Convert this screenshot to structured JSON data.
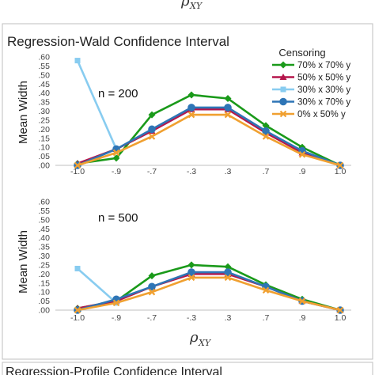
{
  "header_axis": {
    "symbol": "ρ",
    "subscript": "XY"
  },
  "panel_title": "Regression-Wald Confidence Interval",
  "bottom_title": "Regression-Profile Confidence Interval",
  "legend": {
    "title": "Censoring"
  },
  "x_axis": {
    "symbol": "ρ",
    "subscript": "XY"
  },
  "chart_data": [
    {
      "type": "line",
      "title": "Regression-Wald Confidence Interval",
      "annotation": "n = 200",
      "ylabel": "Mean Width",
      "xlabel": "ρXY",
      "categories": [
        "-1.0",
        "-.9",
        "-.7",
        "-.3",
        ".3",
        ".7",
        ".9",
        "1.0"
      ],
      "ylim": [
        0,
        0.6
      ],
      "yticks": [
        ".00",
        ".05",
        ".10",
        ".15",
        ".20",
        ".25",
        ".30",
        ".35",
        ".40",
        ".45",
        ".50",
        ".55",
        ".60"
      ],
      "grid": false,
      "legend_position": "top-right",
      "series": [
        {
          "name": "70% x 70% y",
          "color": "#1a9a1a",
          "marker": "diamond",
          "values": [
            0.01,
            0.04,
            0.28,
            0.39,
            0.37,
            0.22,
            0.1,
            0.0
          ]
        },
        {
          "name": "50% x 50% y",
          "color": "#b5164b",
          "marker": "triangle",
          "values": [
            0.01,
            0.09,
            0.19,
            0.31,
            0.31,
            0.18,
            0.07,
            0.0
          ]
        },
        {
          "name": "30% x 30% y",
          "color": "#88ccf0",
          "marker": "square",
          "values": [
            0.58,
            0.09,
            null,
            null,
            null,
            null,
            null,
            null
          ]
        },
        {
          "name": "30% x 70% y",
          "color": "#2e75b6",
          "marker": "circle",
          "values": [
            0.0,
            0.09,
            0.2,
            0.32,
            0.32,
            0.19,
            0.08,
            0.0
          ]
        },
        {
          "name": "0% x 50% y",
          "color": "#f0a030",
          "marker": "x",
          "values": [
            0.0,
            0.07,
            0.16,
            0.28,
            0.28,
            0.16,
            0.06,
            0.0
          ]
        }
      ]
    },
    {
      "type": "line",
      "annotation": "n = 500",
      "ylabel": "Mean Width",
      "xlabel": "ρXY",
      "categories": [
        "-1.0",
        "-.9",
        "-.7",
        "-.3",
        ".3",
        ".7",
        ".9",
        "1.0"
      ],
      "ylim": [
        0,
        0.6
      ],
      "yticks": [
        ".00",
        ".05",
        ".10",
        ".15",
        ".20",
        ".25",
        ".30",
        ".35",
        ".40",
        ".45",
        ".50",
        ".55",
        ".60"
      ],
      "grid": false,
      "series": [
        {
          "name": "70% x 70% y",
          "color": "#1a9a1a",
          "marker": "diamond",
          "values": [
            0.01,
            0.05,
            0.19,
            0.25,
            0.24,
            0.14,
            0.06,
            0.0
          ]
        },
        {
          "name": "50% x 50% y",
          "color": "#b5164b",
          "marker": "triangle",
          "values": [
            0.01,
            0.05,
            0.13,
            0.2,
            0.2,
            0.13,
            0.05,
            0.0
          ]
        },
        {
          "name": "30% x 30% y",
          "color": "#88ccf0",
          "marker": "square",
          "values": [
            0.23,
            0.04,
            null,
            null,
            null,
            null,
            null,
            null
          ]
        },
        {
          "name": "30% x 70% y",
          "color": "#2e75b6",
          "marker": "circle",
          "values": [
            0.0,
            0.06,
            0.13,
            0.21,
            0.21,
            0.13,
            0.05,
            0.0
          ]
        },
        {
          "name": "0% x 50% y",
          "color": "#f0a030",
          "marker": "x",
          "values": [
            0.0,
            0.04,
            0.1,
            0.18,
            0.18,
            0.11,
            0.05,
            0.0
          ]
        }
      ]
    }
  ]
}
